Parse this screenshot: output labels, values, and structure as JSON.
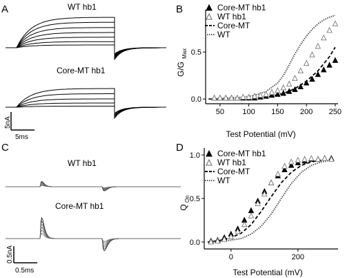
{
  "panels": {
    "A": {
      "letter": "A",
      "trace_labels": [
        "WT hb1",
        "Core-MT hb1"
      ],
      "scalebar": {
        "y_value": "5nA",
        "x_value": "5ms"
      },
      "traces_top": {
        "steady_levels": [
          1,
          2.2,
          3.8,
          5.5,
          7.3,
          9.2,
          11
        ],
        "tail_peak": -4.5
      },
      "traces_bottom": {
        "steady_levels": [
          0.3,
          1.2,
          2.4,
          3.9,
          5.4
        ],
        "tail_peak": -3.5
      }
    },
    "B": {
      "letter": "B",
      "legend": [
        {
          "label": "Core-MT hb1",
          "marker": "filled-triangle"
        },
        {
          "label": "WT hb1",
          "marker": "open-triangle"
        },
        {
          "label": "Core-MT",
          "marker": "dashed-line"
        },
        {
          "label": "WT",
          "marker": "dotted-line"
        }
      ]
    },
    "C": {
      "letter": "C",
      "trace_labels": [
        "WT hb1",
        "Core-MT hb1"
      ],
      "scalebar": {
        "y_value": "0.5nA",
        "x_value": "0.5ms"
      },
      "gating_top": {
        "on_peak": 0.15,
        "off_peak": -0.12
      },
      "gating_bottom": {
        "on_peak": 0.6,
        "off_peak": -0.35
      }
    },
    "D": {
      "letter": "D",
      "legend": [
        {
          "label": "Core-MT hb1",
          "marker": "filled-triangle"
        },
        {
          "label": "WT hb1",
          "marker": "open-triangle"
        },
        {
          "label": "Core-MT",
          "marker": "dashed-line"
        },
        {
          "label": "WT",
          "marker": "dotted-line"
        }
      ]
    }
  },
  "chart_data": [
    {
      "panel": "B",
      "type": "scatter",
      "xlabel": "Test Potential (mV)",
      "ylabel": "G/G",
      "ylabel_sub": "Max",
      "xlim": [
        25,
        255
      ],
      "ylim": [
        -0.05,
        0.95
      ],
      "xticks": [
        50,
        100,
        150,
        200,
        250
      ],
      "yticks": [
        0,
        0.5
      ],
      "ytick_labels": [
        "0.0",
        "0.5"
      ],
      "series": [
        {
          "name": "Core-MT hb1",
          "kind": "points",
          "marker": "filled-triangle",
          "x": [
            40,
            50,
            60,
            70,
            80,
            90,
            100,
            110,
            120,
            130,
            140,
            150,
            160,
            170,
            180,
            190,
            200,
            210,
            220,
            230,
            240,
            250
          ],
          "y": [
            0.01,
            0.01,
            0.01,
            0.01,
            0.01,
            0.01,
            0.01,
            0.01,
            0.02,
            0.03,
            0.04,
            0.05,
            0.06,
            0.08,
            0.1,
            0.13,
            0.17,
            0.21,
            0.26,
            0.31,
            0.36,
            0.41
          ]
        },
        {
          "name": "WT hb1",
          "kind": "points",
          "marker": "open-triangle",
          "x": [
            40,
            50,
            60,
            70,
            80,
            90,
            100,
            110,
            120,
            130,
            140,
            150,
            160,
            170,
            180,
            190,
            200,
            210,
            220,
            230,
            240,
            250
          ],
          "y": [
            0.01,
            0.01,
            0.01,
            0.01,
            0.01,
            0.02,
            0.02,
            0.03,
            0.04,
            0.05,
            0.07,
            0.09,
            0.12,
            0.16,
            0.22,
            0.3,
            0.38,
            0.47,
            0.56,
            0.65,
            0.73,
            0.8
          ]
        },
        {
          "name": "Core-MT",
          "kind": "curve",
          "style": "dashed",
          "x": [
            30,
            60,
            90,
            120,
            140,
            160,
            180,
            200,
            220,
            240,
            250
          ],
          "y": [
            0.0,
            0.0,
            0.01,
            0.02,
            0.03,
            0.06,
            0.11,
            0.19,
            0.3,
            0.45,
            0.55
          ]
        },
        {
          "name": "WT",
          "kind": "curve",
          "style": "dotted",
          "x": [
            30,
            60,
            90,
            110,
            130,
            150,
            160,
            170,
            180,
            190,
            200,
            210,
            220,
            230,
            240,
            250
          ],
          "y": [
            0.0,
            0.01,
            0.02,
            0.04,
            0.08,
            0.17,
            0.25,
            0.36,
            0.48,
            0.58,
            0.67,
            0.74,
            0.8,
            0.84,
            0.87,
            0.89
          ]
        }
      ]
    },
    {
      "panel": "D",
      "type": "scatter",
      "xlabel": "Test Potential (mV)",
      "ylabel": "Q",
      "ylabel_sub": "On",
      "xlim": [
        -80,
        320
      ],
      "ylim": [
        -0.08,
        1.08
      ],
      "xticks": [
        0,
        200
      ],
      "yticks": [
        0,
        0.5,
        1.0
      ],
      "ytick_labels": [
        "0.0",
        "0.5",
        "1.0"
      ],
      "series": [
        {
          "name": "Core-MT hb1",
          "kind": "points",
          "marker": "filled-triangle",
          "x": [
            -60,
            -40,
            -20,
            0,
            20,
            40,
            60,
            80,
            100,
            120,
            140,
            160,
            180,
            200,
            220,
            240,
            260,
            280,
            300
          ],
          "y": [
            0.01,
            0.02,
            0.05,
            0.09,
            0.15,
            0.25,
            0.36,
            0.47,
            0.58,
            0.68,
            0.76,
            0.83,
            0.88,
            0.91,
            0.93,
            0.95,
            0.95,
            0.96,
            0.96
          ]
        },
        {
          "name": "WT hb1",
          "kind": "points",
          "marker": "open-triangle",
          "x": [
            -60,
            -40,
            -20,
            0,
            20,
            40,
            60,
            80,
            100,
            120,
            140,
            160,
            180,
            200,
            220,
            240,
            260,
            280,
            300
          ],
          "y": [
            0.0,
            0.01,
            0.03,
            0.06,
            0.12,
            0.2,
            0.3,
            0.44,
            0.55,
            0.68,
            0.78,
            0.87,
            0.92,
            0.94,
            0.95,
            0.96,
            0.95,
            0.96,
            0.95
          ]
        },
        {
          "name": "Core-MT",
          "kind": "curve",
          "style": "dashed",
          "x": [
            -70,
            -30,
            0,
            30,
            60,
            90,
            120,
            150,
            180,
            210,
            240,
            270,
            300
          ],
          "y": [
            0.0,
            0.02,
            0.05,
            0.1,
            0.2,
            0.35,
            0.52,
            0.68,
            0.8,
            0.88,
            0.92,
            0.94,
            0.95
          ]
        },
        {
          "name": "WT",
          "kind": "curve",
          "style": "dotted",
          "x": [
            -70,
            -30,
            0,
            30,
            60,
            90,
            120,
            150,
            180,
            210,
            240,
            270,
            300
          ],
          "y": [
            0.0,
            0.01,
            0.02,
            0.04,
            0.09,
            0.18,
            0.32,
            0.5,
            0.67,
            0.8,
            0.88,
            0.92,
            0.94
          ]
        }
      ]
    }
  ]
}
